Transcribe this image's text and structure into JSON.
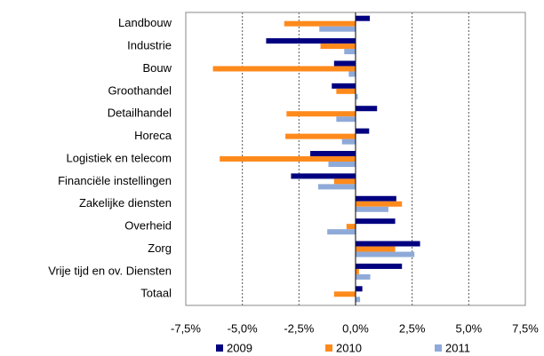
{
  "chart_data": {
    "type": "hbar",
    "categories": [
      "Landbouw",
      "Industrie",
      "Bouw",
      "Groothandel",
      "Detailhandel",
      "Horeca",
      "Logistiek en telecom",
      "Financiële instellingen",
      "Zakelijke diensten",
      "Overheid",
      "Zorg",
      "Vrije tijd en ov. Diensten",
      "Totaal"
    ],
    "series": [
      {
        "name": "2009",
        "color": "#000080",
        "values": [
          0.63,
          -3.95,
          -0.95,
          -1.05,
          0.95,
          0.6,
          -2.0,
          -2.85,
          1.8,
          1.75,
          2.85,
          2.05,
          0.3
        ]
      },
      {
        "name": "2010",
        "color": "#ff8a1c",
        "values": [
          -3.15,
          -1.55,
          -6.3,
          -0.85,
          -3.05,
          -3.1,
          -6.0,
          -0.95,
          2.05,
          -0.4,
          1.75,
          0.15,
          -0.95
        ]
      },
      {
        "name": "2011",
        "color": "#8faad8",
        "values": [
          -1.6,
          -0.5,
          -0.3,
          0.1,
          -0.85,
          -0.6,
          -1.2,
          -1.65,
          1.45,
          -1.25,
          2.6,
          0.65,
          0.2
        ]
      }
    ],
    "xlim": [
      -7.5,
      7.5
    ],
    "xticks": [
      {
        "value": -7.5,
        "label": "-7,5%"
      },
      {
        "value": -5,
        "label": "-5,0%"
      },
      {
        "value": -2.5,
        "label": "-2,5%"
      },
      {
        "value": 0,
        "label": "0,0%"
      },
      {
        "value": 2.5,
        "label": "2,5%"
      },
      {
        "value": 5,
        "label": "5,0%"
      },
      {
        "value": 7.5,
        "label": "7,5%"
      }
    ],
    "grid": true,
    "legend": "bottom"
  }
}
